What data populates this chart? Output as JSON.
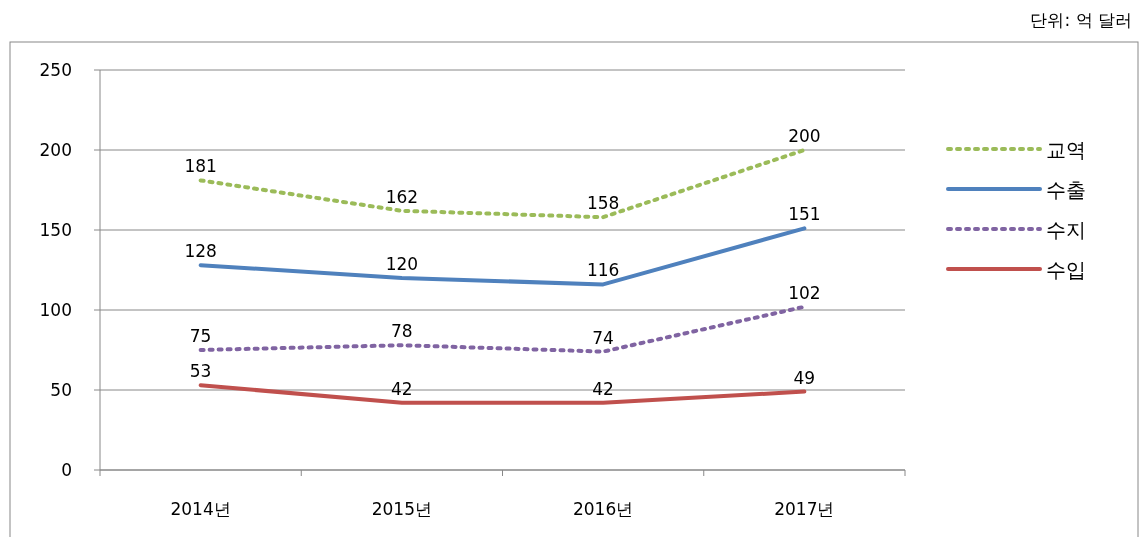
{
  "chart_data": {
    "type": "line",
    "annotations": [
      "단위: 억 달러"
    ],
    "categories": [
      "2014년",
      "2015년",
      "2016년",
      "2017년"
    ],
    "series": [
      {
        "name": "교역",
        "color": "#9bbb59",
        "line_style": "dotted",
        "values": [
          181,
          162,
          158,
          200
        ]
      },
      {
        "name": "수출",
        "color": "#4f81bd",
        "line_style": "solid",
        "values": [
          128,
          120,
          116,
          151
        ]
      },
      {
        "name": "수지",
        "color": "#8064a2",
        "line_style": "dotted",
        "values": [
          75,
          78,
          74,
          102
        ]
      },
      {
        "name": "수입",
        "color": "#c0504d",
        "line_style": "solid",
        "values": [
          53,
          42,
          42,
          49
        ]
      }
    ],
    "ylim": [
      0,
      250
    ],
    "yticks": [
      0,
      50,
      100,
      150,
      200,
      250
    ],
    "grid": "y",
    "legend": "right",
    "data_labels": true,
    "marker": "none"
  }
}
